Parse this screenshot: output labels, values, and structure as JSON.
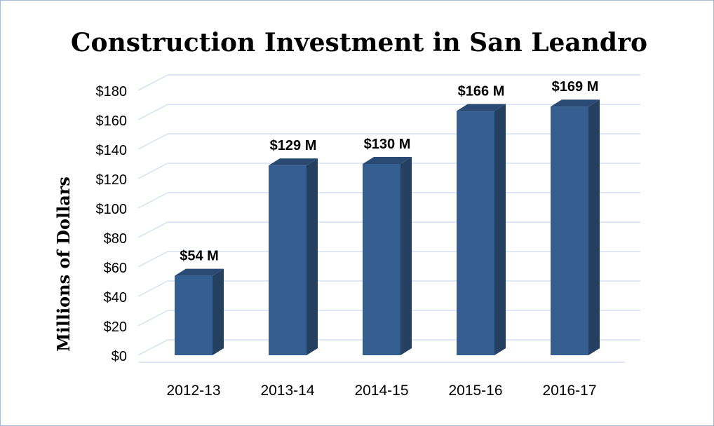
{
  "chart_data": {
    "type": "bar",
    "title": "Construction Investment in San Leandro",
    "ylabel": "Millions of Dollars",
    "xlabel": "",
    "categories": [
      "2012-13",
      "2013-14",
      "2014-15",
      "2015-16",
      "2016-17"
    ],
    "values": [
      54,
      129,
      130,
      166,
      169
    ],
    "data_labels": [
      "$54 M",
      "$129 M",
      "$130 M",
      "$166 M",
      "$169 M"
    ],
    "yticks": [
      0,
      20,
      40,
      60,
      80,
      100,
      120,
      140,
      160,
      180
    ],
    "ytick_labels": [
      "$0",
      "$20",
      "$40",
      "$60",
      "$80",
      "$100",
      "$120",
      "$140",
      "$160",
      "$180"
    ],
    "ylim": [
      0,
      180
    ],
    "grid": true,
    "legend": "none",
    "style": "3d-column",
    "colors": {
      "bar_front": "#365f91",
      "bar_side": "#243f60",
      "bar_top": "#2a4a73",
      "gridline": "#d5e1ef",
      "frame": "#a6bcd6",
      "text": "#000000"
    }
  }
}
